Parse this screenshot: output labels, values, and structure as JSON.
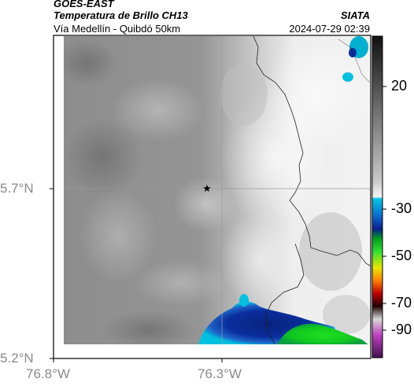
{
  "header": {
    "satellite": "GOES-EAST",
    "product": "Temperatura de Brillo CH13",
    "region": "Vía Medellín - Quibdó 50km",
    "organization": "SIATA",
    "timestamp": "2024-07-29 02:39"
  },
  "map": {
    "lat_labels": [
      "5.7°N",
      "5.2°N"
    ],
    "lon_labels": [
      "76.8°W",
      "76.3°W"
    ],
    "marker_icon": "star-icon"
  },
  "colorbar": {
    "tick_labels": [
      "20",
      "-30",
      "-50",
      "-70",
      "-90"
    ],
    "tick_values": [
      20,
      -30,
      -50,
      -70,
      -90
    ],
    "range": [
      -95,
      35
    ],
    "colors": {
      "warm_gray_dark": "#2a2a2a",
      "gray_mid": "#8c8c8c",
      "light": "#f2f2f2",
      "cyan": "#00b8d8",
      "blue": "#0a2e9e",
      "green": "#10c820",
      "yellow": "#e8e800",
      "red": "#d01000",
      "magenta": "#a02090"
    }
  }
}
